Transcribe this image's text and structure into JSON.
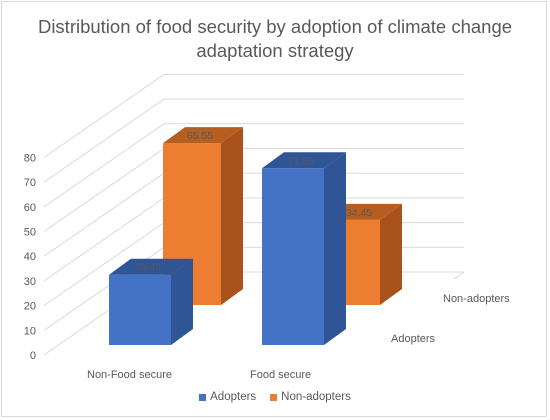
{
  "chart_data": {
    "type": "bar",
    "subtype": "3d-clustered-column",
    "title": "Distribution of food security by adoption of climate change adaptation strategy",
    "title_lines": [
      "Distribution of food security by adoption of climate change",
      "adaptation strategy"
    ],
    "categories": [
      "Non-Food secure",
      "Food secure"
    ],
    "series": [
      {
        "name": "Adopters",
        "values": [
          28.45,
          71.55
        ],
        "value_labels": [
          "28.45",
          "71.55"
        ],
        "color": "#4472C4",
        "side_color": "#2F5597",
        "top_color": "#2F5597"
      },
      {
        "name": "Non-adopters",
        "values": [
          65.55,
          34.45
        ],
        "value_labels": [
          "65.55",
          "34.45"
        ],
        "color": "#ED7D31",
        "side_color": "#A9521B",
        "top_color": "#B65E20"
      }
    ],
    "ylim": [
      0,
      80
    ],
    "yticks": [
      "0",
      "10",
      "20",
      "30",
      "40",
      "50",
      "60",
      "70",
      "80"
    ],
    "depth_labels": [
      "Adopters",
      "Non-adopters"
    ],
    "grid": true,
    "legend": "bottom"
  },
  "colors": {
    "text": "#595959",
    "grid": "#d9d9d9"
  }
}
